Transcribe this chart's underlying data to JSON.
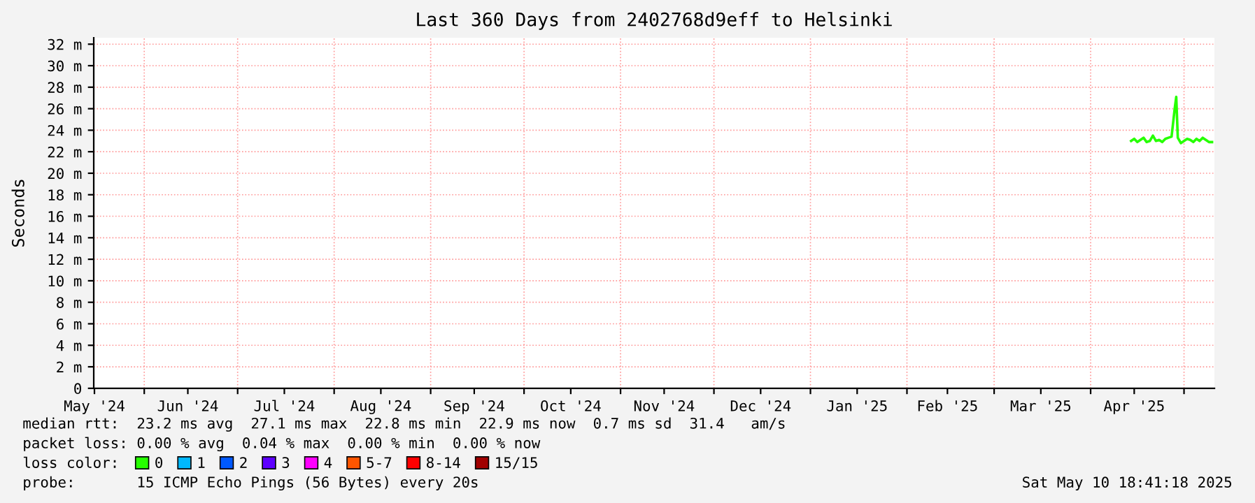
{
  "chart_data": {
    "type": "line",
    "title": "Last 360 Days from 2402768d9eff to Helsinki",
    "ylabel": "Seconds",
    "x": [
      "2025-04-14",
      "2025-04-15",
      "2025-04-16",
      "2025-04-17",
      "2025-04-18",
      "2025-04-19",
      "2025-04-20",
      "2025-04-21",
      "2025-04-22",
      "2025-04-23",
      "2025-04-24",
      "2025-04-25",
      "2025-04-26",
      "2025-04-27",
      "2025-04-28",
      "2025-04-28T12:00",
      "2025-04-29",
      "2025-04-30",
      "2025-05-01",
      "2025-05-02",
      "2025-05-03",
      "2025-05-04",
      "2025-05-05",
      "2025-05-06",
      "2025-05-07",
      "2025-05-08",
      "2025-05-09",
      "2025-05-10"
    ],
    "series": [
      {
        "name": "0",
        "color": "#26ff00",
        "values": [
          23.0,
          23.2,
          22.9,
          23.1,
          23.3,
          22.9,
          23.0,
          23.5,
          23.0,
          23.1,
          22.9,
          23.2,
          23.3,
          23.4,
          26.0,
          27.1,
          23.3,
          22.8,
          23.0,
          23.2,
          23.1,
          22.9,
          23.2,
          23.0,
          23.3,
          23.1,
          22.9,
          22.9
        ]
      },
      {
        "name": "1",
        "color": "#00b8ff",
        "values": [
          null,
          null,
          null,
          null,
          null,
          null,
          null,
          null,
          null,
          null,
          null,
          null,
          null,
          null,
          null,
          null,
          null,
          null,
          null,
          null,
          null,
          null,
          null,
          null,
          null,
          null,
          null,
          null
        ]
      },
      {
        "name": "2",
        "color": "#0059ff",
        "values": [
          null,
          null,
          null,
          null,
          null,
          null,
          null,
          null,
          null,
          null,
          null,
          null,
          null,
          null,
          null,
          null,
          null,
          null,
          null,
          null,
          null,
          null,
          null,
          null,
          null,
          null,
          null,
          null
        ]
      },
      {
        "name": "3",
        "color": "#5e00ff",
        "values": [
          null,
          null,
          null,
          null,
          null,
          null,
          null,
          null,
          null,
          null,
          null,
          null,
          null,
          null,
          null,
          null,
          null,
          null,
          null,
          null,
          null,
          null,
          null,
          null,
          null,
          null,
          null,
          null
        ]
      },
      {
        "name": "4",
        "color": "#ff00ff",
        "values": [
          null,
          null,
          null,
          null,
          null,
          null,
          null,
          null,
          null,
          null,
          null,
          null,
          null,
          null,
          null,
          null,
          null,
          null,
          null,
          null,
          null,
          null,
          null,
          null,
          null,
          null,
          null,
          null
        ]
      },
      {
        "name": "5-7",
        "color": "#ff5500",
        "values": [
          null,
          null,
          null,
          null,
          null,
          null,
          null,
          null,
          null,
          null,
          null,
          null,
          null,
          null,
          null,
          null,
          null,
          null,
          null,
          null,
          null,
          null,
          null,
          null,
          null,
          null,
          null,
          null
        ]
      },
      {
        "name": "8-14",
        "color": "#ff0000",
        "values": [
          null,
          null,
          null,
          null,
          null,
          null,
          null,
          null,
          null,
          null,
          null,
          null,
          null,
          null,
          null,
          null,
          null,
          null,
          null,
          null,
          null,
          null,
          null,
          null,
          null,
          null,
          null,
          null
        ]
      },
      {
        "name": "15/15",
        "color": "#a10000",
        "values": [
          null,
          null,
          null,
          null,
          null,
          null,
          null,
          null,
          null,
          null,
          null,
          null,
          null,
          null,
          null,
          null,
          null,
          null,
          null,
          null,
          null,
          null,
          null,
          null,
          null,
          null,
          null,
          null
        ]
      }
    ],
    "legend_title": "loss color:",
    "legend": "bottom",
    "xlim": [
      "2024-05-15T18:41",
      "2025-05-10T18:41"
    ],
    "xticks": [
      {
        "value": "2024-05-16",
        "label": "May '24"
      },
      {
        "value": "2024-06-01",
        "label": null
      },
      {
        "value": "2024-06-15",
        "label": "Jun '24"
      },
      {
        "value": "2024-07-01",
        "label": null
      },
      {
        "value": "2024-07-16",
        "label": "Jul '24"
      },
      {
        "value": "2024-08-01",
        "label": null
      },
      {
        "value": "2024-08-16",
        "label": "Aug '24"
      },
      {
        "value": "2024-09-01",
        "label": null
      },
      {
        "value": "2024-09-15",
        "label": "Sep '24"
      },
      {
        "value": "2024-10-01",
        "label": null
      },
      {
        "value": "2024-10-16",
        "label": "Oct '24"
      },
      {
        "value": "2024-11-01",
        "label": null
      },
      {
        "value": "2024-11-15",
        "label": "Nov '24"
      },
      {
        "value": "2024-12-01",
        "label": null
      },
      {
        "value": "2024-12-16",
        "label": "Dec '24"
      },
      {
        "value": "2025-01-01",
        "label": null
      },
      {
        "value": "2025-01-16",
        "label": "Jan '25"
      },
      {
        "value": "2025-02-01",
        "label": null
      },
      {
        "value": "2025-02-14",
        "label": "Feb '25"
      },
      {
        "value": "2025-03-01",
        "label": null
      },
      {
        "value": "2025-03-16",
        "label": "Mar '25"
      },
      {
        "value": "2025-04-01",
        "label": null
      },
      {
        "value": "2025-04-15",
        "label": "Apr '25"
      },
      {
        "value": "2025-05-01",
        "label": null
      }
    ],
    "ylim": [
      0,
      32.6
    ],
    "yticks": [
      {
        "value": 0,
        "label": "0"
      },
      {
        "value": 2,
        "label": "2 m"
      },
      {
        "value": 4,
        "label": "4 m"
      },
      {
        "value": 6,
        "label": "6 m"
      },
      {
        "value": 8,
        "label": "8 m"
      },
      {
        "value": 10,
        "label": "10 m"
      },
      {
        "value": 12,
        "label": "12 m"
      },
      {
        "value": 14,
        "label": "14 m"
      },
      {
        "value": 16,
        "label": "16 m"
      },
      {
        "value": 18,
        "label": "18 m"
      },
      {
        "value": 20,
        "label": "20 m"
      },
      {
        "value": 22,
        "label": "22 m"
      },
      {
        "value": 24,
        "label": "24 m"
      },
      {
        "value": 26,
        "label": "26 m"
      },
      {
        "value": 28,
        "label": "28 m"
      },
      {
        "value": 30,
        "label": "30 m"
      },
      {
        "value": 32,
        "label": "32 m"
      }
    ],
    "grid": true,
    "marker": "none",
    "line_style": "solid",
    "annotations": [
      "median rtt:  23.2 ms avg  27.1 ms max  22.8 ms min  22.9 ms now  0.7 ms sd  31.4   am/s",
      "packet loss: 0.00 % avg  0.04 % max  0.00 % min  0.00 % now",
      "probe:       15 ICMP Echo Pings (56 Bytes) every 20s",
      "Sat May 10 18:41:18 2025"
    ]
  }
}
